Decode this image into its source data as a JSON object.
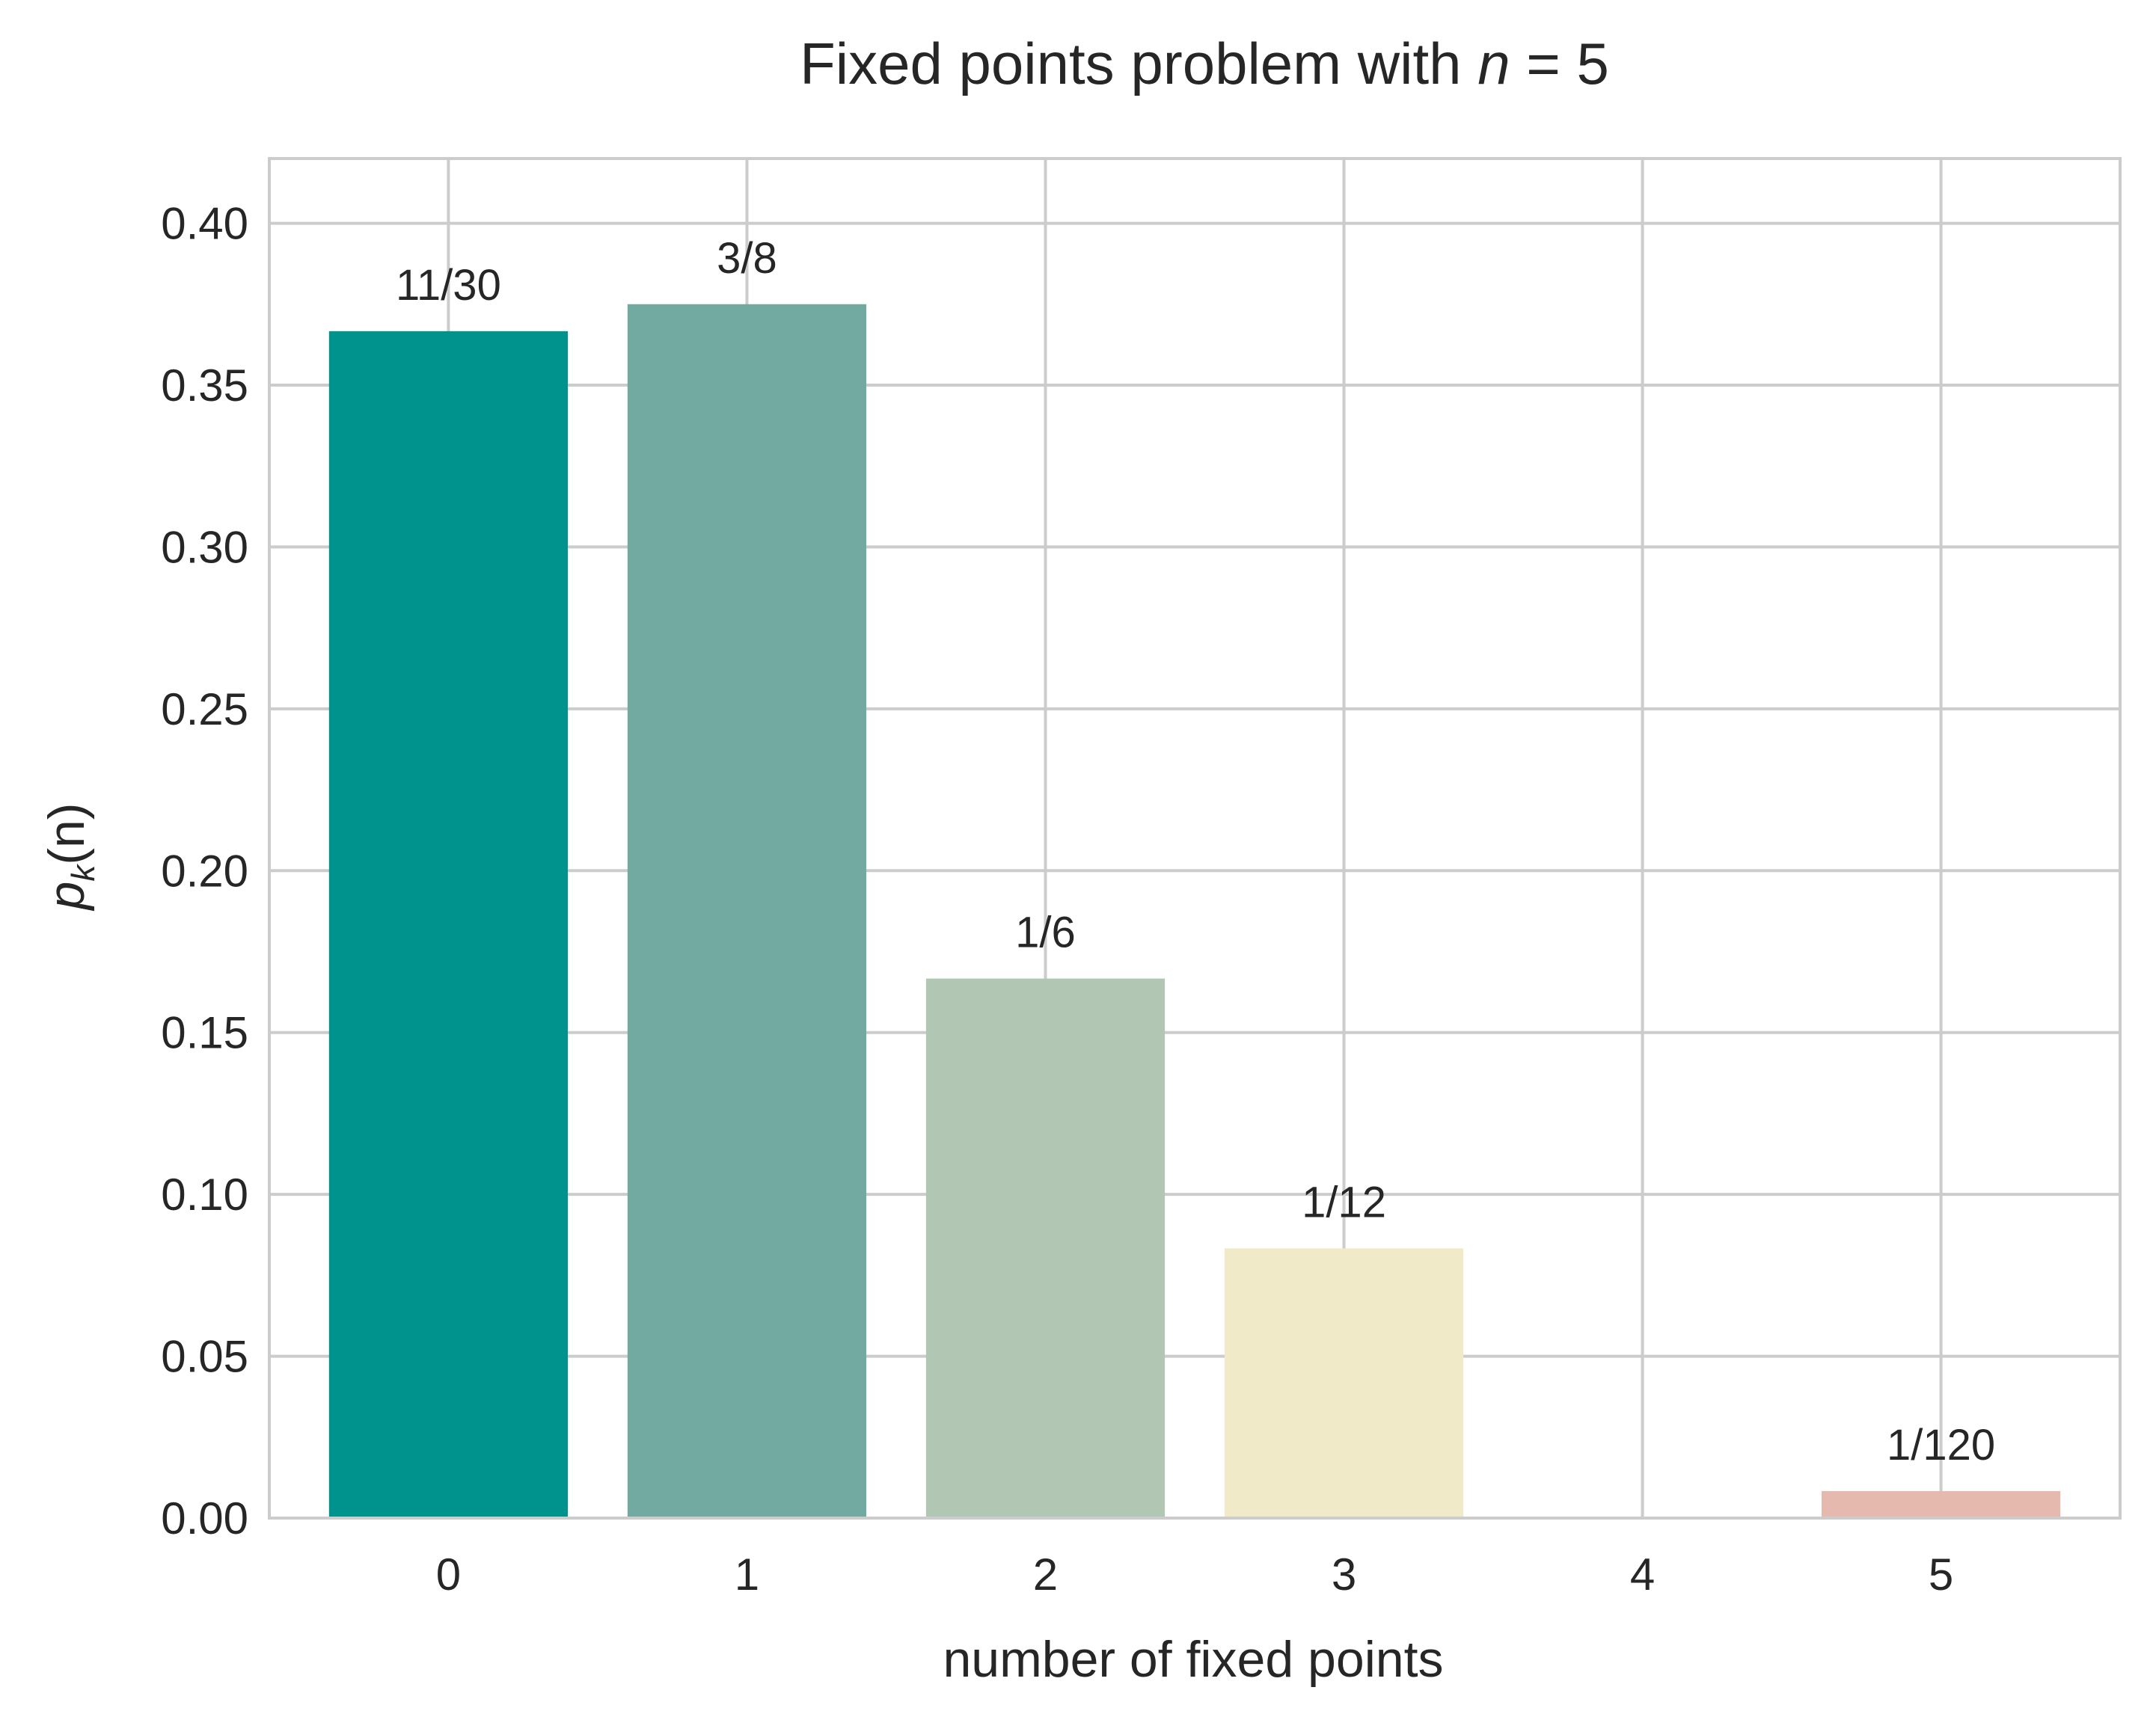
{
  "chart_data": {
    "type": "bar",
    "title": "Fixed points problem with n = 5",
    "title_parts": {
      "prefix": "Fixed points problem with ",
      "var": "n",
      "suffix": " = 5"
    },
    "xlabel": "number of fixed points",
    "ylabel": "p_k(n)",
    "ylabel_parts": {
      "p": "p",
      "sub": "k",
      "rest": "(n)"
    },
    "categories": [
      "0",
      "1",
      "2",
      "3",
      "4",
      "5"
    ],
    "values": [
      0.366667,
      0.375,
      0.166667,
      0.083333,
      0.0,
      0.008333
    ],
    "data_labels": [
      "11/30",
      "3/8",
      "1/6",
      "1/12",
      "",
      "1/120"
    ],
    "colors": [
      "#00938e",
      "#72aaa1",
      "#b1c7b3",
      "#f1eac8",
      "#e5b9ad",
      "#e5b9ad"
    ],
    "ylim": [
      0,
      0.42
    ],
    "yticks": [
      "0.00",
      "0.05",
      "0.10",
      "0.15",
      "0.20",
      "0.25",
      "0.30",
      "0.35",
      "0.40"
    ],
    "grid": true,
    "legend": "none"
  }
}
